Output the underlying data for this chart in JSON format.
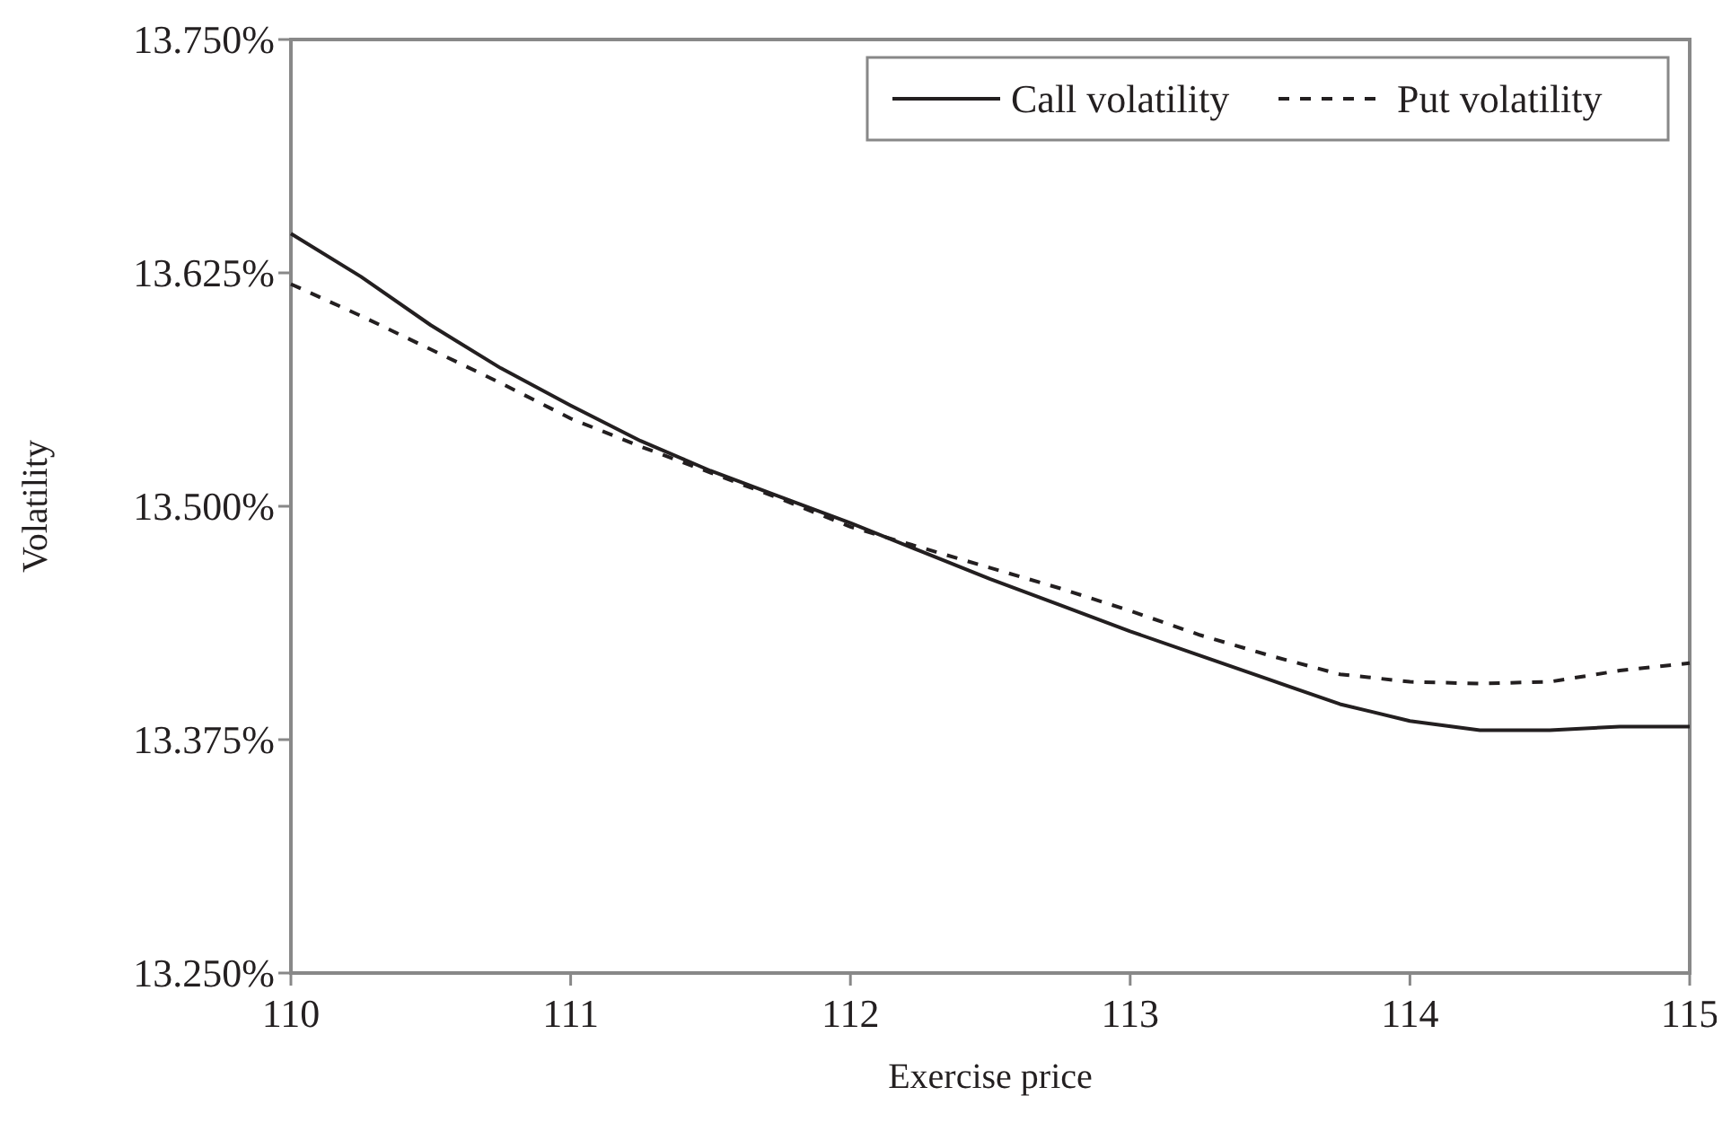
{
  "chart_data": {
    "type": "line",
    "xlabel": "Exercise price",
    "ylabel": "Volatility",
    "x": [
      110,
      110.25,
      110.5,
      110.75,
      111,
      111.25,
      111.5,
      111.75,
      112,
      112.25,
      112.5,
      112.75,
      113,
      113.25,
      113.5,
      113.75,
      114,
      114.25,
      114.5,
      114.75,
      115
    ],
    "series": [
      {
        "name": "Call volatility",
        "color": "#231f20",
        "line_style": "solid",
        "values": [
          13.646,
          13.623,
          13.597,
          13.574,
          13.554,
          13.535,
          13.519,
          13.505,
          13.491,
          13.476,
          13.461,
          13.447,
          13.433,
          13.42,
          13.407,
          13.394,
          13.385,
          13.38,
          13.38,
          13.382,
          13.382
        ]
      },
      {
        "name": "Put volatility",
        "color": "#231f20",
        "line_style": "dashed",
        "values": [
          13.619,
          13.602,
          13.584,
          13.566,
          13.547,
          13.532,
          13.518,
          13.504,
          13.489,
          13.478,
          13.467,
          13.456,
          13.444,
          13.431,
          13.42,
          13.41,
          13.406,
          13.405,
          13.406,
          13.412,
          13.416
        ]
      }
    ],
    "xlim": [
      110,
      115
    ],
    "xticks": [
      110,
      111,
      112,
      113,
      114,
      115
    ],
    "ylim": [
      13.25,
      13.75
    ],
    "yticks": [
      {
        "value": 13.25,
        "label": "13.250%"
      },
      {
        "value": 13.375,
        "label": "13.375%"
      },
      {
        "value": 13.5,
        "label": "13.500%"
      },
      {
        "value": 13.625,
        "label": "13.625%"
      },
      {
        "value": 13.75,
        "label": "13.750%"
      }
    ],
    "grid": false,
    "legend": "top right"
  }
}
